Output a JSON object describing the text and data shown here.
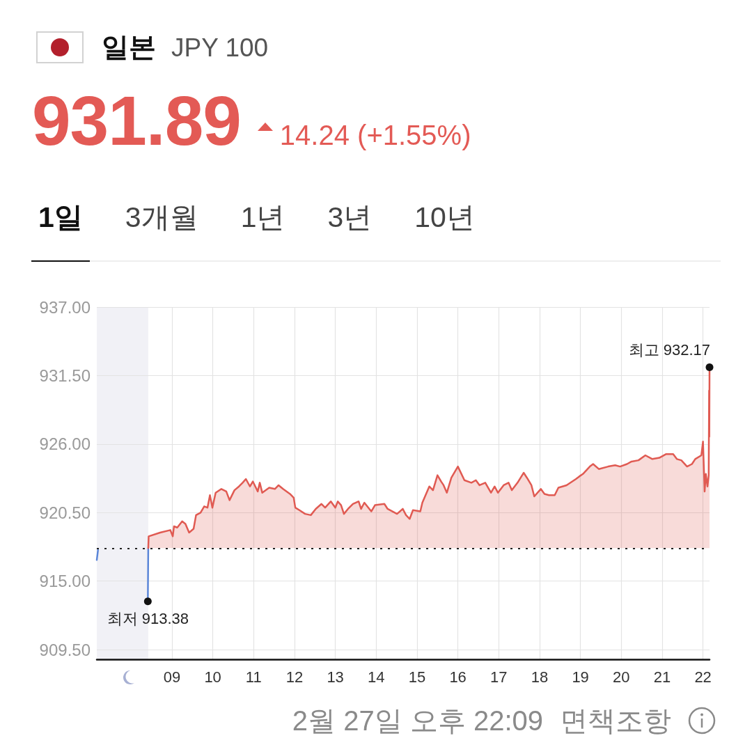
{
  "chart_data": {
    "type": "line",
    "title": "일본",
    "subtitle": "JPY 100",
    "annotations": [
      "931.89",
      "14.24 (+1.55%)",
      "1일",
      "3개월",
      "1년",
      "3년",
      "10년",
      "2월 27일 오후 22:09",
      "면책조항",
      {
        "text": "최저 913.38",
        "x": 8.41,
        "y": 913.38
      },
      {
        "text": "최고 932.17",
        "x": 22.16,
        "y": 932.17
      }
    ],
    "series": [
      {
        "color": "#5b86d8",
        "x": [
          7.16,
          7.19,
          7.8,
          8.41,
          8.42
        ],
        "values": [
          916.7,
          917.5,
          null,
          913.38,
          917.65
        ]
      },
      {
        "type": "area",
        "color": "#e05a52",
        "x": [
          8.42,
          8.43,
          8.71,
          8.96,
          9.02,
          9.05,
          9.13,
          9.25,
          9.33,
          9.42,
          9.53,
          9.59,
          9.7,
          9.79,
          9.87,
          9.93,
          9.99,
          10.07,
          10.21,
          10.33,
          10.41,
          10.53,
          10.64,
          10.73,
          10.81,
          10.91,
          10.98,
          11.1,
          11.15,
          11.21,
          11.38,
          11.52,
          11.61,
          11.72,
          11.89,
          11.98,
          12.02,
          12.12,
          12.26,
          12.4,
          12.52,
          12.66,
          12.75,
          12.89,
          13.0,
          13.06,
          13.14,
          13.21,
          13.31,
          13.43,
          13.57,
          13.63,
          13.71,
          13.88,
          13.97,
          14.2,
          14.28,
          14.51,
          14.65,
          14.73,
          14.82,
          14.9,
          15.08,
          15.13,
          15.3,
          15.39,
          15.5,
          15.59,
          15.65,
          15.73,
          15.84,
          16.0,
          16.16,
          16.33,
          16.44,
          16.53,
          16.67,
          16.81,
          16.9,
          16.98,
          17.12,
          17.24,
          17.32,
          17.46,
          17.61,
          17.69,
          17.8,
          17.87,
          18.03,
          18.12,
          18.23,
          18.37,
          18.46,
          18.66,
          18.89,
          18.97,
          19.06,
          19.23,
          19.31,
          19.45,
          19.68,
          19.85,
          19.97,
          20.14,
          20.25,
          20.42,
          20.59,
          20.76,
          20.93,
          21.1,
          21.27,
          21.36,
          21.47,
          21.61,
          21.73,
          21.81,
          21.96,
          22.0,
          22.04,
          22.07,
          22.11,
          22.14,
          22.15,
          22.155,
          22.16
        ],
        "values": [
          917.65,
          918.6,
          918.9,
          919.1,
          918.6,
          919.4,
          919.3,
          919.8,
          919.6,
          918.9,
          919.2,
          920.3,
          920.5,
          921.0,
          920.9,
          921.9,
          920.9,
          922.1,
          922.4,
          922.2,
          921.5,
          922.3,
          922.6,
          922.9,
          923.2,
          922.6,
          923.0,
          922.2,
          922.9,
          922.1,
          922.5,
          922.4,
          922.7,
          922.4,
          922.0,
          921.7,
          920.9,
          920.7,
          920.4,
          920.3,
          920.8,
          921.2,
          920.9,
          921.4,
          920.9,
          921.4,
          921.1,
          920.4,
          920.8,
          921.2,
          921.4,
          920.8,
          921.3,
          920.6,
          921.1,
          921.2,
          920.8,
          920.4,
          920.8,
          920.3,
          920.0,
          920.7,
          920.6,
          921.3,
          922.6,
          922.3,
          923.5,
          923.0,
          922.7,
          922.1,
          923.3,
          924.2,
          923.1,
          922.9,
          923.1,
          922.7,
          922.9,
          922.1,
          922.6,
          922.1,
          922.7,
          922.9,
          922.3,
          922.9,
          923.7,
          923.3,
          922.7,
          921.8,
          922.4,
          922.0,
          921.9,
          921.9,
          922.5,
          922.7,
          923.2,
          923.4,
          923.6,
          924.2,
          924.4,
          924.0,
          924.2,
          924.3,
          924.2,
          924.4,
          924.6,
          924.7,
          925.1,
          924.8,
          924.9,
          925.2,
          925.2,
          924.8,
          924.7,
          924.2,
          924.4,
          924.8,
          925.1,
          926.2,
          922.2,
          923.6,
          922.6,
          923.5,
          930.3,
          926.6,
          932.17
        ]
      }
    ],
    "xlim": [
      7.16,
      22.16
    ],
    "xticks": [
      {
        "value": 9,
        "label": "09"
      },
      10,
      11,
      12,
      13,
      14,
      15,
      16,
      17,
      18,
      19,
      20,
      21,
      22
    ],
    "ylim": [
      908.7,
      937
    ],
    "yticks": [
      {
        "value": 909.5,
        "label": "909.50"
      },
      {
        "value": 915,
        "label": "915.00"
      },
      {
        "value": 920.5,
        "label": "920.50"
      },
      {
        "value": 926,
        "label": "926.00"
      },
      {
        "value": 931.5,
        "label": "931.50"
      },
      {
        "value": 937,
        "label": "937.00"
      }
    ],
    "grid": true,
    "marker": "none",
    "ref_lines": [
      {
        "axis": "y",
        "value": 917.65,
        "color": "#222222",
        "line_style": "dotted"
      }
    ],
    "bands": [
      {
        "axis": "x",
        "from": 7.16,
        "to": 8.42,
        "color": "#eff0f5"
      }
    ]
  }
}
